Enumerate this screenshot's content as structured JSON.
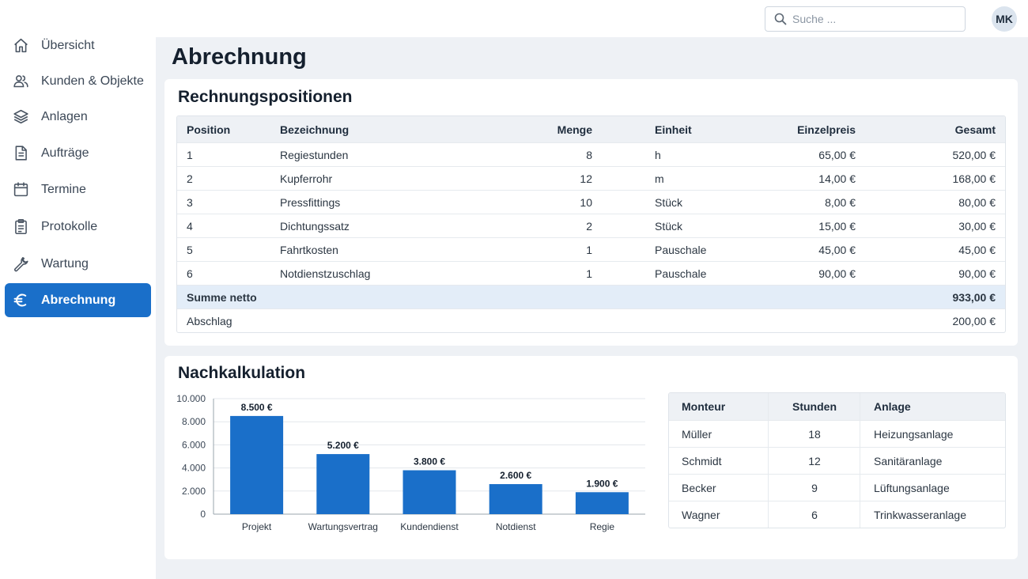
{
  "header": {
    "search": {
      "placeholder": "Suche ..."
    },
    "avatar": {
      "initials": "MK"
    }
  },
  "sidebar": {
    "items": [
      {
        "label": "Übersicht",
        "icon": "home-icon",
        "active": false
      },
      {
        "label": "Kunden & Objekte",
        "icon": "users-icon",
        "active": false
      },
      {
        "label": "Anlagen",
        "icon": "layers-icon",
        "active": false
      },
      {
        "label": "Aufträge",
        "icon": "document-icon",
        "active": false
      },
      {
        "label": "Termine",
        "icon": "calendar-icon",
        "active": false
      },
      {
        "label": "Protokolle",
        "icon": "clipboard-icon",
        "active": false
      },
      {
        "label": "Wartung",
        "icon": "wrench-icon",
        "active": false
      },
      {
        "label": "Abrechnung",
        "icon": "euro-icon",
        "active": true
      }
    ]
  },
  "page": {
    "title": "Abrechnung"
  },
  "invoice": {
    "title": "Rechnungspositionen",
    "headers": {
      "position": "Position",
      "bezeichnung": "Bezeichnung",
      "menge": "Menge",
      "einheit": "Einheit",
      "einzelpreis": "Einzelpreis",
      "gesamt": "Gesamt"
    },
    "rows": [
      {
        "position": "1",
        "bezeichnung": "Regiestunden",
        "menge": "8",
        "einheit": "h",
        "einzelpreis": "65,00 €",
        "gesamt": "520,00 €"
      },
      {
        "position": "2",
        "bezeichnung": "Kupferrohr",
        "menge": "12",
        "einheit": "m",
        "einzelpreis": "14,00 €",
        "gesamt": "168,00 €"
      },
      {
        "position": "3",
        "bezeichnung": "Pressfittings",
        "menge": "10",
        "einheit": "Stück",
        "einzelpreis": "8,00 €",
        "gesamt": "80,00 €"
      },
      {
        "position": "4",
        "bezeichnung": "Dichtungssatz",
        "menge": "2",
        "einheit": "Stück",
        "einzelpreis": "15,00 €",
        "gesamt": "30,00 €"
      },
      {
        "position": "5",
        "bezeichnung": "Fahrtkosten",
        "menge": "1",
        "einheit": "Pauschale",
        "einzelpreis": "45,00 €",
        "gesamt": "45,00 €"
      },
      {
        "position": "6",
        "bezeichnung": "Notdienstzuschlag",
        "menge": "1",
        "einheit": "Pauschale",
        "einzelpreis": "90,00 €",
        "gesamt": "90,00 €"
      }
    ],
    "sum": {
      "label": "Summe netto",
      "value": "933,00 €"
    },
    "abschlag": {
      "label": "Abschlag",
      "value": "200,00 €"
    }
  },
  "nachkalkulation": {
    "title": "Nachkalkulation",
    "monteur_table": {
      "headers": {
        "monteur": "Monteur",
        "stunden": "Stunden",
        "anlage": "Anlage"
      },
      "rows": [
        {
          "monteur": "Müller",
          "stunden": "18",
          "anlage": "Heizungsanlage"
        },
        {
          "monteur": "Schmidt",
          "stunden": "12",
          "anlage": "Sanitäranlage"
        },
        {
          "monteur": "Becker",
          "stunden": "9",
          "anlage": "Lüftungsanlage"
        },
        {
          "monteur": "Wagner",
          "stunden": "6",
          "anlage": "Trinkwasseranlage"
        }
      ]
    }
  },
  "chart_data": {
    "type": "bar",
    "categories": [
      "Projekt",
      "Wartungsvertrag",
      "Kundendienst",
      "Notdienst",
      "Regie"
    ],
    "values": [
      8500,
      5200,
      3800,
      2600,
      1900
    ],
    "data_labels": [
      "8.500 €",
      "5.200 €",
      "3.800 €",
      "2.600 €",
      "1.900 €"
    ],
    "y_ticks": [
      0,
      2000,
      4000,
      6000,
      8000,
      10000
    ],
    "y_tick_labels": [
      "0",
      "2.000",
      "4.000",
      "6.000",
      "8.000",
      "10.000"
    ],
    "ylim": [
      0,
      10000
    ],
    "grid": true,
    "bar_color": "#1a6fc9"
  },
  "colors": {
    "accent": "#1a6fc9",
    "sum_row": "#e3edf8"
  }
}
